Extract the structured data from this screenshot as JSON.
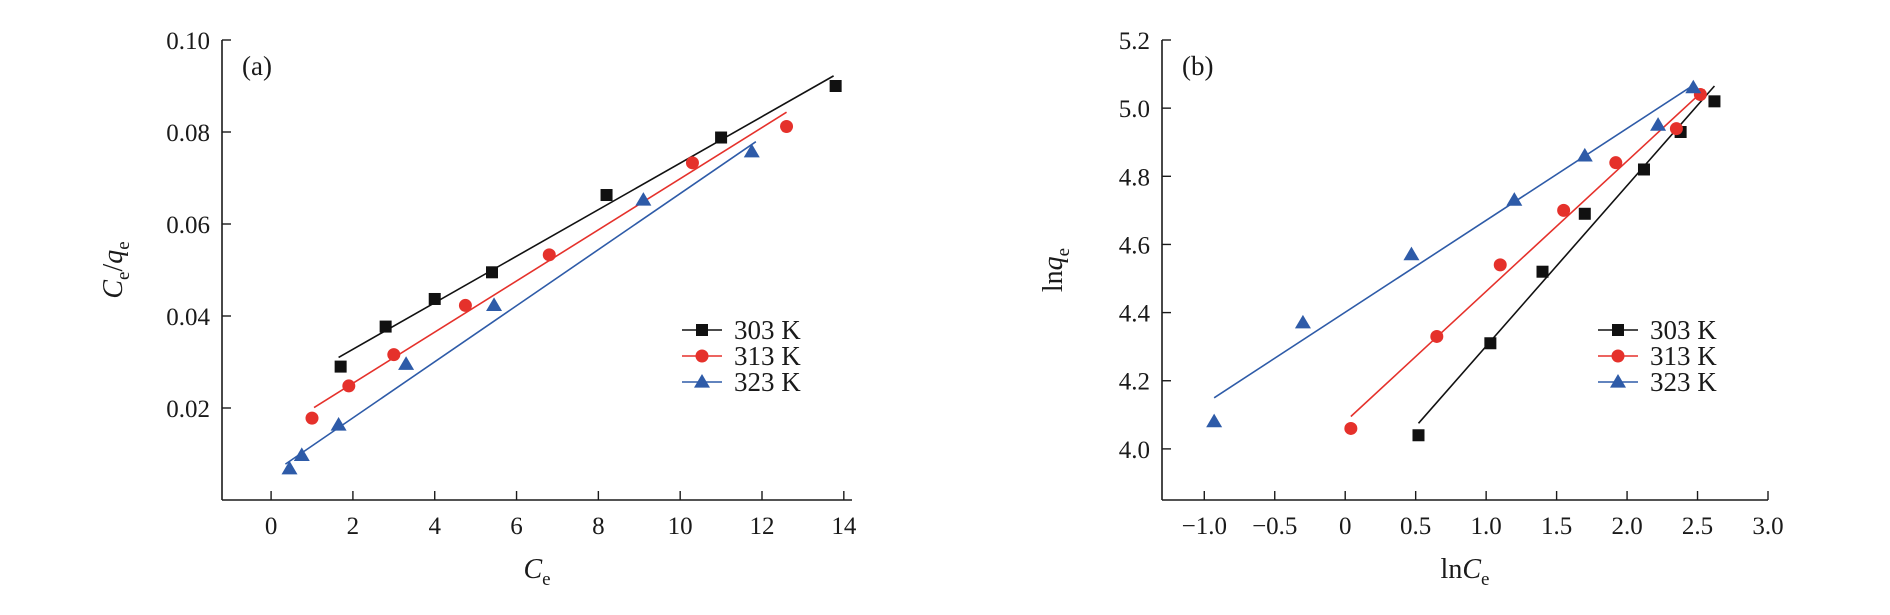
{
  "chart_data": [
    {
      "type": "scatter",
      "panel_label": "(a)",
      "xlabel": {
        "main": "C",
        "sub": "e"
      },
      "ylabel": {
        "num_main": "C",
        "num_sub": "e",
        "sep": "/",
        "den_main": "q",
        "den_sub": "e"
      },
      "xlim": [
        -1.2,
        14.2
      ],
      "ylim": [
        0.0,
        0.1
      ],
      "xticks": [
        0,
        2,
        4,
        6,
        8,
        10,
        12,
        14
      ],
      "xtick_labels": [
        "0",
        "2",
        "4",
        "6",
        "8",
        "10",
        "12",
        "14"
      ],
      "yticks": [
        0.02,
        0.04,
        0.06,
        0.08,
        0.1
      ],
      "ytick_labels": [
        "0.02",
        "0.04",
        "0.06",
        "0.08",
        "0.10"
      ],
      "grid": false,
      "legend_position": "bottom-right",
      "series": [
        {
          "name": "303 K",
          "marker": "square",
          "color": "#111111",
          "x": [
            1.7,
            2.8,
            4.0,
            5.4,
            8.2,
            11.0,
            13.8
          ],
          "y": [
            0.029,
            0.0377,
            0.0437,
            0.0495,
            0.0663,
            0.0788,
            0.09
          ],
          "fit": [
            [
              1.65,
              0.031
            ],
            [
              13.75,
              0.0922
            ]
          ]
        },
        {
          "name": "313 K",
          "marker": "circle",
          "color": "#e5312b",
          "x": [
            1.0,
            1.9,
            3.0,
            4.75,
            6.8,
            10.3,
            12.6
          ],
          "y": [
            0.0178,
            0.0248,
            0.0316,
            0.0423,
            0.0533,
            0.0733,
            0.0812
          ],
          "fit": [
            [
              1.05,
              0.0201
            ],
            [
              12.6,
              0.0843
            ]
          ]
        },
        {
          "name": "323 K",
          "marker": "triangle",
          "color": "#2e5ba8",
          "x": [
            0.45,
            0.75,
            1.65,
            3.3,
            5.45,
            9.1,
            11.75
          ],
          "y": [
            0.0068,
            0.0097,
            0.0163,
            0.0295,
            0.0423,
            0.0652,
            0.0757
          ],
          "fit": [
            [
              0.35,
              0.0078
            ],
            [
              11.85,
              0.0779
            ]
          ]
        }
      ]
    },
    {
      "type": "scatter",
      "panel_label": "(b)",
      "xlabel": {
        "main": "lnC",
        "sub": "e"
      },
      "ylabel": {
        "main": "lnq",
        "sub": "e"
      },
      "xlim": [
        -1.3,
        3.0
      ],
      "ylim": [
        3.85,
        5.2
      ],
      "xticks": [
        -1.0,
        -0.5,
        0,
        0.5,
        1.0,
        1.5,
        2.0,
        2.5,
        3.0
      ],
      "xtick_labels": [
        "−1.0",
        "−0.5",
        "0",
        "0.5",
        "1.0",
        "1.5",
        "2.0",
        "2.5",
        "3.0"
      ],
      "yticks": [
        4.0,
        4.2,
        4.4,
        4.6,
        4.8,
        5.0,
        5.2
      ],
      "ytick_labels": [
        "4.0",
        "4.2",
        "4.4",
        "4.6",
        "4.8",
        "5.0",
        "5.2"
      ],
      "grid": false,
      "legend_position": "bottom-right",
      "series": [
        {
          "name": "303 K",
          "marker": "square",
          "color": "#111111",
          "x": [
            0.52,
            1.03,
            1.4,
            1.7,
            2.12,
            2.38,
            2.62
          ],
          "y": [
            4.04,
            4.31,
            4.52,
            4.69,
            4.82,
            4.93,
            5.02
          ],
          "fit": [
            [
              0.52,
              4.075
            ],
            [
              2.62,
              5.065
            ]
          ]
        },
        {
          "name": "313 K",
          "marker": "circle",
          "color": "#e5312b",
          "x": [
            0.04,
            0.65,
            1.1,
            1.55,
            1.92,
            2.35,
            2.52
          ],
          "y": [
            4.06,
            4.33,
            4.54,
            4.7,
            4.84,
            4.94,
            5.04
          ],
          "fit": [
            [
              0.04,
              4.095
            ],
            [
              2.55,
              5.055
            ]
          ]
        },
        {
          "name": "323 K",
          "marker": "triangle",
          "color": "#2e5ba8",
          "x": [
            -0.93,
            -0.3,
            0.47,
            1.2,
            1.7,
            2.22,
            2.47
          ],
          "y": [
            4.08,
            4.37,
            4.57,
            4.73,
            4.86,
            4.95,
            5.06
          ],
          "fit": [
            [
              -0.93,
              4.15
            ],
            [
              2.48,
              5.07
            ]
          ]
        }
      ]
    }
  ]
}
